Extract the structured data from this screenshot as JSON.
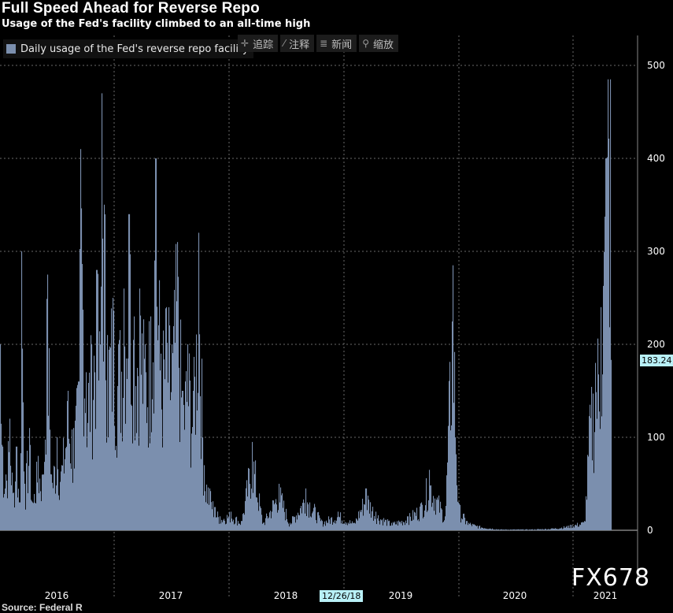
{
  "header": {
    "title": "Full Speed Ahead for Reverse Repo",
    "subtitle": "Usage of the Fed's facility climbed to an all-time high"
  },
  "toolbar": {
    "items": [
      {
        "label": "追踪",
        "icon": "crosshair-icon"
      },
      {
        "label": "注释",
        "icon": "annotate-icon"
      },
      {
        "label": "新闻",
        "icon": "news-icon"
      },
      {
        "label": "缩放",
        "icon": "zoom-icon"
      }
    ]
  },
  "last_value_label": "183.24",
  "date_marker_label": "12/26/18",
  "watermark": "FX678",
  "source_text": "Source: Federal R",
  "colors": {
    "background": "#000000",
    "bars": "#7b8fae",
    "grid": "#6a6a6a",
    "tag_bg": "#b8f0f7"
  },
  "chart_data": {
    "type": "bar",
    "title": "Full Speed Ahead for Reverse Repo",
    "subtitle": "Usage of the Fed's facility climbed to an all-time high",
    "xlabel": "",
    "ylabel": "",
    "legend": {
      "position": "top-left",
      "entries": [
        "Daily usage of the Fed's reverse repo facility"
      ]
    },
    "series": [
      {
        "name": "Daily usage of the Fed's reverse repo facility"
      }
    ],
    "x_ticks": [
      "2016",
      "2017",
      "2018",
      "2019",
      "2020",
      "2021"
    ],
    "y_ticks": [
      0,
      100,
      200,
      300,
      400,
      500
    ],
    "ylim": [
      0,
      530
    ],
    "xlim": [
      2015.55,
      2021.35
    ],
    "grid": true,
    "last_value": 183.24,
    "points": [
      [
        2015.55,
        200
      ],
      [
        2015.57,
        90
      ],
      [
        2015.6,
        60
      ],
      [
        2015.64,
        120
      ],
      [
        2015.67,
        40
      ],
      [
        2015.7,
        90
      ],
      [
        2015.73,
        30
      ],
      [
        2015.75,
        300
      ],
      [
        2015.78,
        50
      ],
      [
        2015.82,
        110
      ],
      [
        2015.85,
        30
      ],
      [
        2015.9,
        80
      ],
      [
        2015.95,
        60
      ],
      [
        2015.99,
        275
      ],
      [
        2016.03,
        60
      ],
      [
        2016.08,
        100
      ],
      [
        2016.12,
        70
      ],
      [
        2016.18,
        150
      ],
      [
        2016.23,
        110
      ],
      [
        2016.28,
        160
      ],
      [
        2016.3,
        410
      ],
      [
        2016.35,
        170
      ],
      [
        2016.4,
        200
      ],
      [
        2016.45,
        280
      ],
      [
        2016.48,
        200
      ],
      [
        2016.5,
        470
      ],
      [
        2016.55,
        210
      ],
      [
        2016.6,
        250
      ],
      [
        2016.65,
        200
      ],
      [
        2016.7,
        260
      ],
      [
        2016.75,
        340
      ],
      [
        2016.8,
        230
      ],
      [
        2016.85,
        260
      ],
      [
        2016.9,
        200
      ],
      [
        2016.95,
        230
      ],
      [
        2017.0,
        400
      ],
      [
        2017.05,
        190
      ],
      [
        2017.1,
        240
      ],
      [
        2017.15,
        200
      ],
      [
        2017.2,
        310
      ],
      [
        2017.25,
        150
      ],
      [
        2017.3,
        200
      ],
      [
        2017.35,
        150
      ],
      [
        2017.4,
        320
      ],
      [
        2017.45,
        70
      ],
      [
        2017.5,
        45
      ],
      [
        2017.55,
        25
      ],
      [
        2017.6,
        15
      ],
      [
        2017.7,
        20
      ],
      [
        2017.8,
        10
      ],
      [
        2017.9,
        95
      ],
      [
        2018.0,
        8
      ],
      [
        2018.15,
        50
      ],
      [
        2018.25,
        8
      ],
      [
        2018.4,
        45
      ],
      [
        2018.55,
        10
      ],
      [
        2018.7,
        20
      ],
      [
        2018.85,
        8
      ],
      [
        2018.96,
        45
      ],
      [
        2019.05,
        20
      ],
      [
        2019.2,
        8
      ],
      [
        2019.35,
        15
      ],
      [
        2019.48,
        30
      ],
      [
        2019.55,
        65
      ],
      [
        2019.7,
        15
      ],
      [
        2019.77,
        285
      ],
      [
        2019.82,
        30
      ],
      [
        2019.9,
        10
      ],
      [
        2020.0,
        5
      ],
      [
        2020.2,
        1
      ],
      [
        2020.5,
        1
      ],
      [
        2020.7,
        2
      ],
      [
        2020.85,
        5
      ],
      [
        2021.0,
        10
      ],
      [
        2021.05,
        135
      ],
      [
        2021.1,
        180
      ],
      [
        2021.15,
        240
      ],
      [
        2021.2,
        400
      ],
      [
        2021.22,
        485
      ],
      [
        2021.24,
        485
      ],
      [
        2021.25,
        183.24
      ]
    ]
  }
}
